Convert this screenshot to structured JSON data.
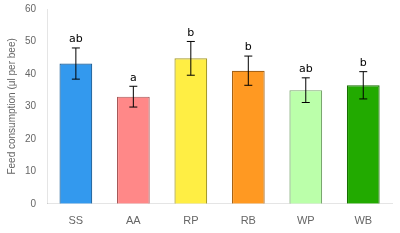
{
  "chart_data": {
    "type": "bar",
    "categories": [
      "SS",
      "AA",
      "RP",
      "RB",
      "WP",
      "WB"
    ],
    "values": [
      43.2,
      33.0,
      44.8,
      41.0,
      35.0,
      36.5
    ],
    "errors": [
      4.8,
      3.2,
      5.2,
      4.5,
      3.8,
      4.2
    ],
    "colors": [
      "#3399EE",
      "#FF8888",
      "#FFEE44",
      "#FF9922",
      "#BBFFAA",
      "#22AA00"
    ],
    "annotations": [
      "ab",
      "a",
      "b",
      "b",
      "ab",
      "b"
    ],
    "ylabel": "Feed consumption (μl per bee)",
    "ylim": [
      0,
      60
    ],
    "yticks": [
      0,
      10,
      20,
      30,
      40,
      50,
      60
    ],
    "grid": false
  }
}
